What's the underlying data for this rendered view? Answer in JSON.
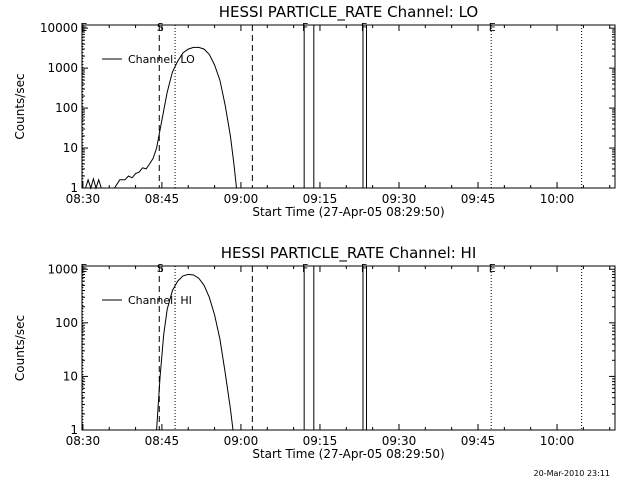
{
  "chart_data": [
    {
      "type": "line",
      "title": "HESSI PARTICLE_RATE Channel: LO",
      "xlabel": "Start Time (27-Apr-05 08:29:50)",
      "ylabel": "Counts/sec",
      "yscale": "log",
      "ylim": [
        1,
        12000
      ],
      "xlim": [
        "08:29:50",
        "10:11:00"
      ],
      "x_ticks": [
        "08:30",
        "08:45",
        "09:00",
        "09:15",
        "09:30",
        "09:45",
        "10:00"
      ],
      "y_ticks": [
        "1",
        "10",
        "100",
        "1000",
        "10000"
      ],
      "legend": {
        "position": "top-left"
      },
      "series": [
        {
          "name": "Channel: LO",
          "color": "#000000",
          "points": [
            [
              "08:30:30",
              1.0
            ],
            [
              "08:31:00",
              1.6
            ],
            [
              "08:31:30",
              1.0
            ],
            [
              "08:32:00",
              1.7
            ],
            [
              "08:32:30",
              1.0
            ],
            [
              "08:33:00",
              1.6
            ],
            [
              "08:33:30",
              1.0
            ],
            [
              "08:34:00",
              1.0
            ],
            [
              "08:34:30",
              1.0
            ],
            [
              "08:35:00",
              1.0
            ],
            [
              "08:36:00",
              1.0
            ],
            [
              "08:37:00",
              1.6
            ],
            [
              "08:38:00",
              1.6
            ],
            [
              "08:38:40",
              2.0
            ],
            [
              "08:39:20",
              1.8
            ],
            [
              "08:40:00",
              2.3
            ],
            [
              "08:40:40",
              2.5
            ],
            [
              "08:41:20",
              3.2
            ],
            [
              "08:42:00",
              3.0
            ],
            [
              "08:42:40",
              4.0
            ],
            [
              "08:43:20",
              5.5
            ],
            [
              "08:44:00",
              10
            ],
            [
              "08:45:00",
              50
            ],
            [
              "08:46:00",
              250
            ],
            [
              "08:47:00",
              800
            ],
            [
              "08:48:00",
              1500
            ],
            [
              "08:49:00",
              2400
            ],
            [
              "08:50:00",
              3000
            ],
            [
              "08:51:00",
              3300
            ],
            [
              "08:52:00",
              3300
            ],
            [
              "08:53:00",
              3000
            ],
            [
              "08:54:00",
              2200
            ],
            [
              "08:55:00",
              1200
            ],
            [
              "08:56:00",
              500
            ],
            [
              "08:57:00",
              120
            ],
            [
              "08:58:00",
              20
            ],
            [
              "08:58:40",
              4
            ],
            [
              "08:59:10",
              1.0
            ]
          ]
        }
      ],
      "markers": [
        {
          "label": "E",
          "time": "08:30:00",
          "style": "dotted"
        },
        {
          "label": "S",
          "time": "08:44:30",
          "style": "dashed"
        },
        {
          "label": "",
          "time": "08:47:30",
          "style": "dotted"
        },
        {
          "label": "",
          "time": "09:02:10",
          "style": "dashed"
        },
        {
          "label": "F",
          "time": "09:12:00",
          "style": "solid"
        },
        {
          "label": "",
          "time": "09:13:50",
          "style": "solid"
        },
        {
          "label": "F",
          "time": "09:23:10",
          "style": "solid"
        },
        {
          "label": "",
          "time": "09:23:50",
          "style": "solid"
        },
        {
          "label": "E",
          "time": "09:47:30",
          "style": "dotted"
        },
        {
          "label": "",
          "time": "10:04:40",
          "style": "dotted"
        }
      ]
    },
    {
      "type": "line",
      "title": "HESSI PARTICLE_RATE Channel: HI",
      "xlabel": "Start Time (27-Apr-05 08:29:50)",
      "ylabel": "Counts/sec",
      "yscale": "log",
      "ylim": [
        1,
        1150
      ],
      "xlim": [
        "08:29:50",
        "10:11:00"
      ],
      "x_ticks": [
        "08:30",
        "08:45",
        "09:00",
        "09:15",
        "09:30",
        "09:45",
        "10:00"
      ],
      "y_ticks": [
        "1",
        "10",
        "100",
        "1000"
      ],
      "legend": {
        "position": "top-left"
      },
      "series": [
        {
          "name": "Channel: HI",
          "color": "#000000",
          "points": [
            [
              "08:44:00",
              1.0
            ],
            [
              "08:44:40",
              10
            ],
            [
              "08:45:20",
              60
            ],
            [
              "08:46:00",
              180
            ],
            [
              "08:47:00",
              400
            ],
            [
              "08:48:00",
              600
            ],
            [
              "08:49:00",
              750
            ],
            [
              "08:50:00",
              800
            ],
            [
              "08:51:00",
              780
            ],
            [
              "08:52:00",
              680
            ],
            [
              "08:53:00",
              500
            ],
            [
              "08:54:00",
              300
            ],
            [
              "08:55:00",
              140
            ],
            [
              "08:56:00",
              50
            ],
            [
              "08:57:00",
              12
            ],
            [
              "08:58:00",
              2.5
            ],
            [
              "08:58:30",
              1.0
            ]
          ]
        }
      ],
      "markers": [
        {
          "label": "E",
          "time": "08:30:00",
          "style": "dotted"
        },
        {
          "label": "S",
          "time": "08:44:30",
          "style": "dashed"
        },
        {
          "label": "",
          "time": "08:47:30",
          "style": "dotted"
        },
        {
          "label": "",
          "time": "09:02:10",
          "style": "dashed"
        },
        {
          "label": "F",
          "time": "09:12:00",
          "style": "solid"
        },
        {
          "label": "",
          "time": "09:13:50",
          "style": "solid"
        },
        {
          "label": "F",
          "time": "09:23:10",
          "style": "solid"
        },
        {
          "label": "",
          "time": "09:23:50",
          "style": "solid"
        },
        {
          "label": "E",
          "time": "09:47:30",
          "style": "dotted"
        },
        {
          "label": "",
          "time": "10:04:40",
          "style": "dotted"
        }
      ]
    }
  ],
  "footer": {
    "timestamp": "20-Mar-2010 23:11"
  }
}
